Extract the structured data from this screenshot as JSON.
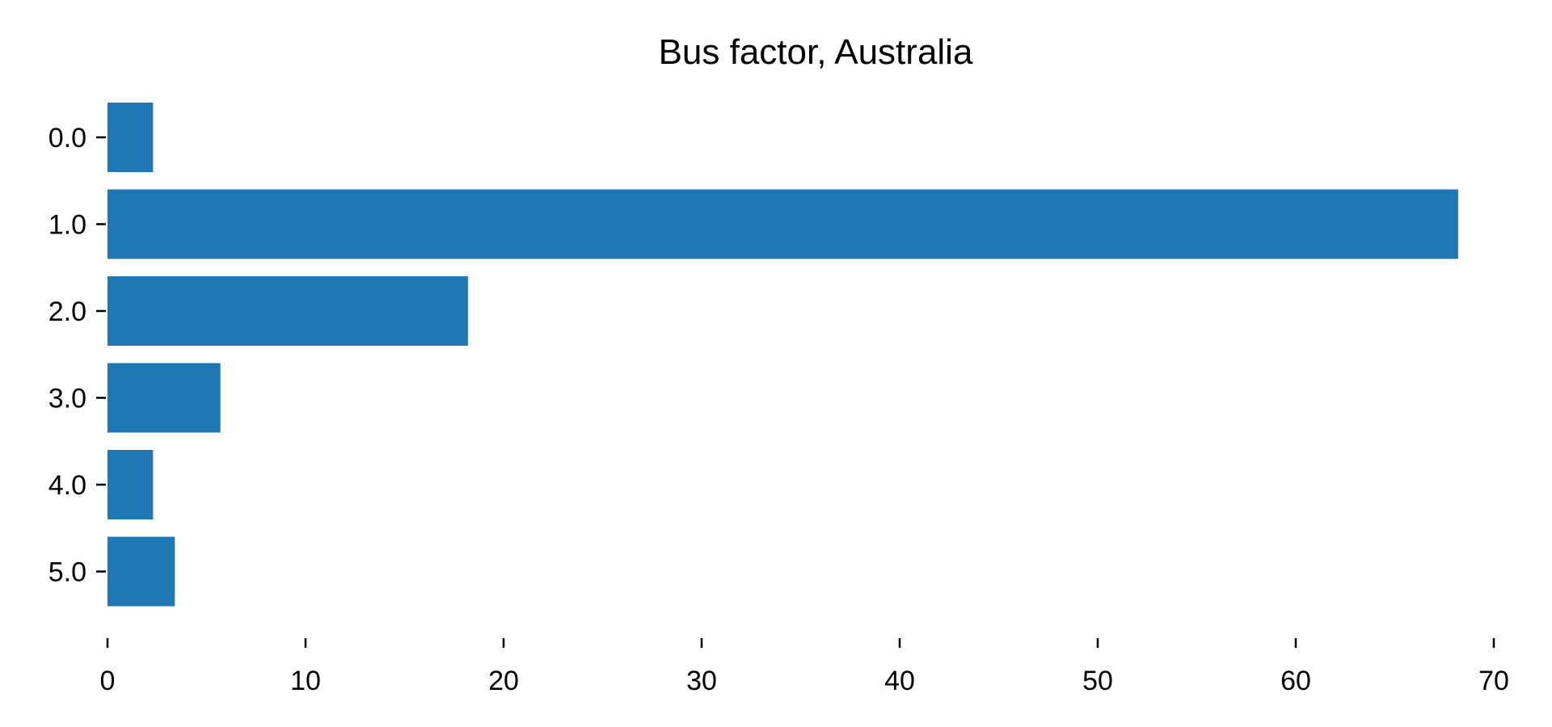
{
  "chart_data": {
    "type": "bar",
    "orientation": "horizontal",
    "title": "Bus factor, Australia",
    "xlabel": "",
    "ylabel": "",
    "categories": [
      "0.0",
      "1.0",
      "2.0",
      "3.0",
      "4.0",
      "5.0"
    ],
    "values": [
      2.3,
      68.2,
      18.2,
      5.7,
      2.3,
      3.4
    ],
    "xlim": [
      0,
      70
    ],
    "xticks": [
      "0",
      "10",
      "20",
      "30",
      "40",
      "50",
      "60",
      "70"
    ],
    "grid": false,
    "legend": "none",
    "bar_color": "#1f77b4"
  }
}
